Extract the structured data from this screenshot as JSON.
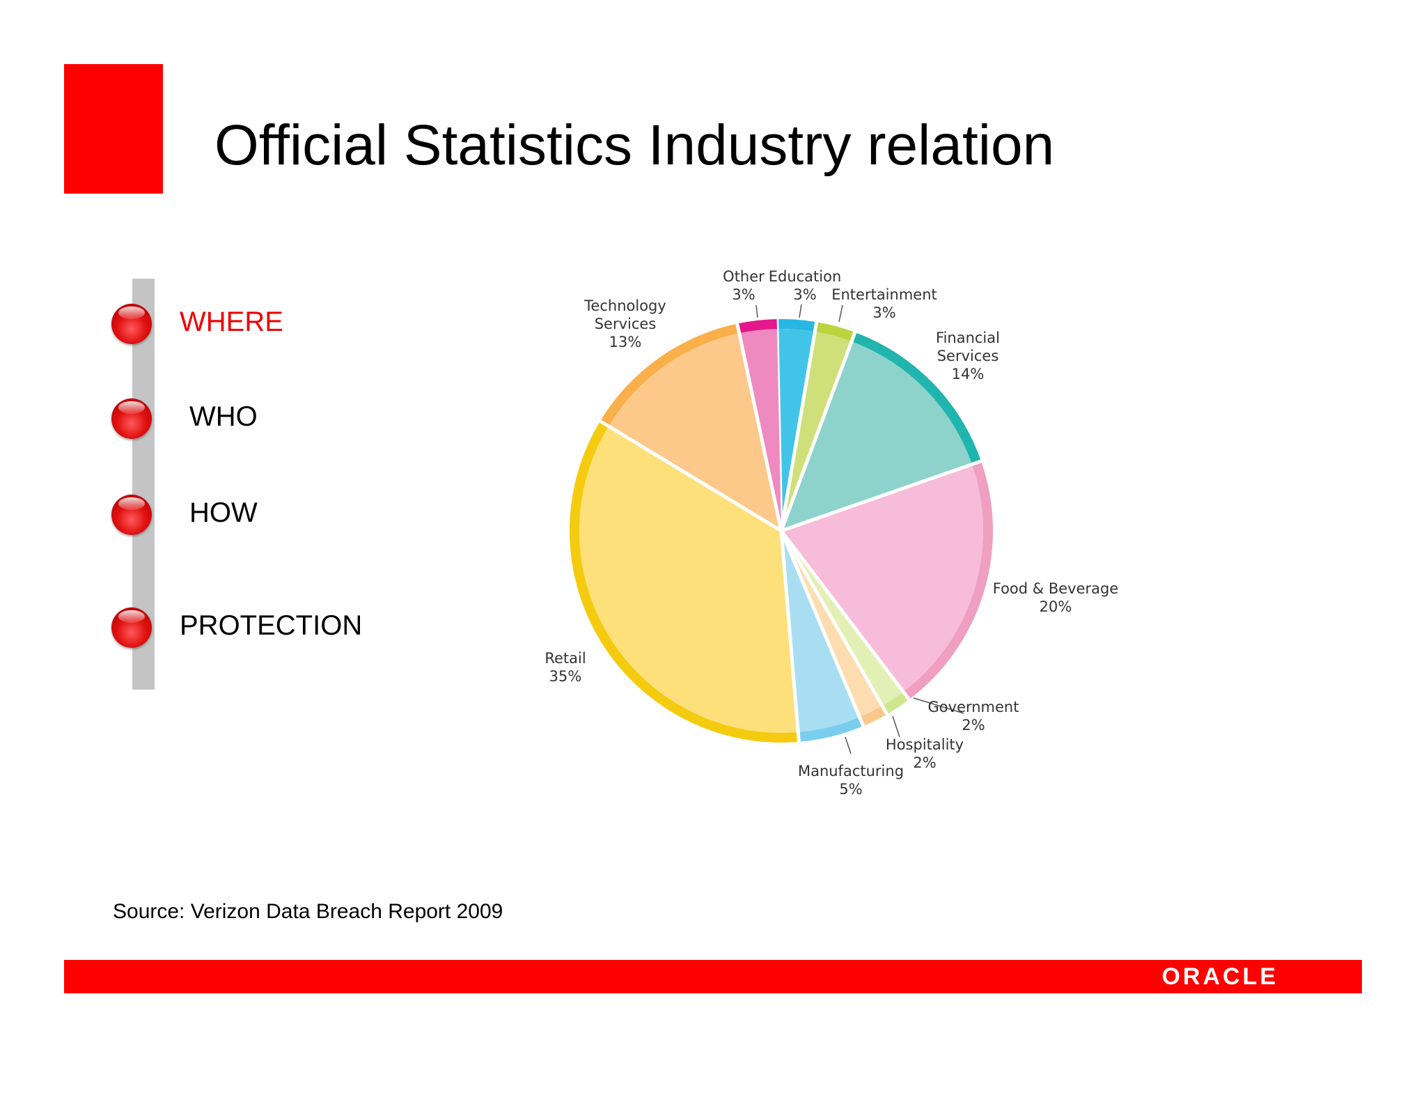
{
  "slide": {
    "title": "Official Statistics Industry relation",
    "source": "Source: Verizon Data Breach Report 2009",
    "logo": "ORACLE",
    "brand_color": "#ff0000"
  },
  "nav": {
    "items": [
      {
        "label": "WHERE",
        "active": true
      },
      {
        "label": "WHO",
        "active": false
      },
      {
        "label": "HOW",
        "active": false
      },
      {
        "label": "PROTECTION",
        "active": false
      }
    ],
    "active_color": "#ee0000"
  },
  "chart_data": {
    "type": "pie",
    "title": "",
    "slices": [
      {
        "label": "Education",
        "value": 3,
        "color": "#42c4e8"
      },
      {
        "label": "Entertainment",
        "value": 3,
        "color": "#cfe07a"
      },
      {
        "label": "Financial Services",
        "value": 14,
        "color": "#8dd3cc"
      },
      {
        "label": "Food & Beverage",
        "value": 20,
        "color": "#f7bcd9"
      },
      {
        "label": "Government",
        "value": 2,
        "color": "#e3f0b5"
      },
      {
        "label": "Hospitality",
        "value": 2,
        "color": "#fddcb0"
      },
      {
        "label": "Manufacturing",
        "value": 5,
        "color": "#a9def2"
      },
      {
        "label": "Retail",
        "value": 35,
        "color": "#fde07a"
      },
      {
        "label": "Technology Services",
        "value": 13,
        "color": "#fdc98a"
      },
      {
        "label": "Other",
        "value": 3,
        "color": "#ee8ac0"
      }
    ],
    "rim_colors": [
      "#27b7e2",
      "#bcd43d",
      "#20b5ae",
      "#ef9fc0",
      "#cfe690",
      "#fbc88c",
      "#7bcdee",
      "#f5cb10",
      "#f9b04a",
      "#e4178b"
    ],
    "label_lines": [
      [
        "Education",
        "3%"
      ],
      [
        "Entertainment",
        "3%"
      ],
      [
        "Financial",
        "Services",
        "14%"
      ],
      [
        "Food & Beverage",
        "20%"
      ],
      [
        "Government",
        "2%"
      ],
      [
        "Hospitality",
        "2%"
      ],
      [
        "Manufacturing",
        "5%"
      ],
      [
        "Retail",
        "35%"
      ],
      [
        "Technology",
        "Services",
        "13%"
      ],
      [
        "Other",
        "3%"
      ]
    ]
  }
}
